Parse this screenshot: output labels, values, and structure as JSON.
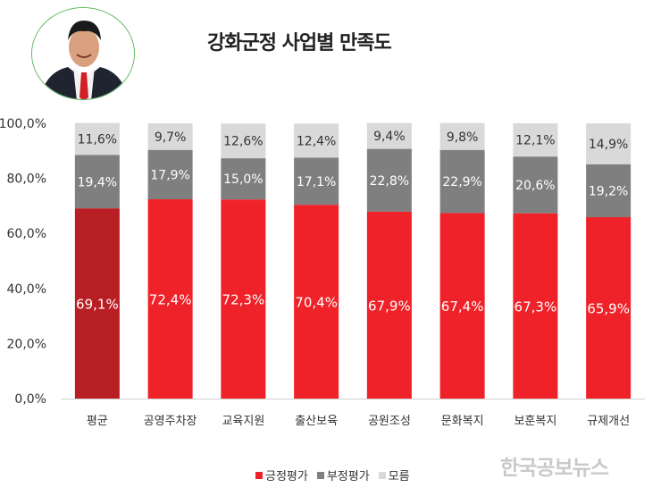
{
  "chart_data": {
    "type": "bar",
    "stacked": true,
    "title": "강화군정 사업별 만족도",
    "categories": [
      "평균",
      "공영주차장",
      "교육지원",
      "출산보육",
      "공원조성",
      "문화복지",
      "보훈복지",
      "규제개선"
    ],
    "series": [
      {
        "name": "긍정평가",
        "values": [
          69.1,
          72.4,
          72.3,
          70.4,
          67.9,
          67.4,
          67.3,
          65.9
        ],
        "labels": [
          "69,1%",
          "72,4%",
          "72,3%",
          "70,4%",
          "67,9%",
          "67,4%",
          "67,3%",
          "65,9%"
        ]
      },
      {
        "name": "부정평가",
        "values": [
          19.4,
          17.9,
          15.0,
          17.1,
          22.8,
          22.9,
          20.6,
          19.2
        ],
        "labels": [
          "19,4%",
          "17,9%",
          "15,0%",
          "17,1%",
          "22,8%",
          "22,9%",
          "20,6%",
          "19,2%"
        ]
      },
      {
        "name": "모름",
        "values": [
          11.6,
          9.7,
          12.6,
          12.4,
          9.4,
          9.8,
          12.1,
          14.9
        ],
        "labels": [
          "11,6%",
          "9,7%",
          "12,6%",
          "12,4%",
          "9,4%",
          "9,8%",
          "12,1%",
          "14,9%"
        ]
      }
    ],
    "ylim": [
      0,
      100
    ],
    "yticks": [
      0,
      20,
      40,
      60,
      80,
      100
    ],
    "ytick_labels": [
      "0,0%",
      "20,0%",
      "40,0%",
      "60,0%",
      "80,0%",
      "100,0%"
    ],
    "grid": false,
    "legend": "bottom",
    "colors": {
      "positive": "#ee2228",
      "positive_highlight": "#b81f24",
      "negative": "#7f7f7f",
      "unknown": "#d9d9d9",
      "negative_label": "#ffffff",
      "unknown_label": "#333333"
    }
  },
  "legend_items": [
    {
      "label": "긍정평가",
      "color": "#ee2228"
    },
    {
      "label": "부정평가",
      "color": "#7f7f7f"
    },
    {
      "label": "모름",
      "color": "#d9d9d9"
    }
  ],
  "watermark": "한국공보뉴스"
}
